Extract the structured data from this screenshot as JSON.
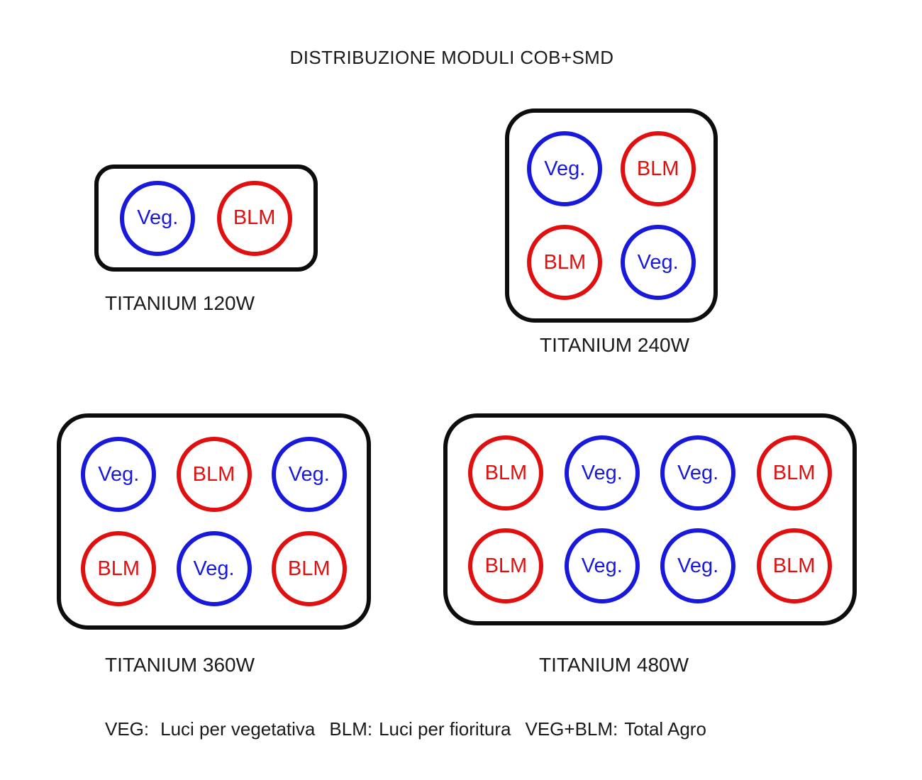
{
  "title": "DISTRIBUZIONE MODULI COB+SMD",
  "colors": {
    "veg": "#1919dc",
    "blm": "#e11010",
    "outline": "#0d0d0d",
    "text": "#1a1a1a",
    "background": "#ffffff"
  },
  "panels": [
    {
      "label": "TITANIUM 120W",
      "rows": 1,
      "cols": 2,
      "modules": [
        {
          "label": "Veg.",
          "type": "veg"
        },
        {
          "label": "BLM",
          "type": "blm"
        }
      ]
    },
    {
      "label": "TITANIUM 240W",
      "rows": 2,
      "cols": 2,
      "modules": [
        {
          "label": "Veg.",
          "type": "veg"
        },
        {
          "label": "BLM",
          "type": "blm"
        },
        {
          "label": "BLM",
          "type": "blm"
        },
        {
          "label": "Veg.",
          "type": "veg"
        }
      ]
    },
    {
      "label": "TITANIUM 360W",
      "rows": 2,
      "cols": 3,
      "modules": [
        {
          "label": "Veg.",
          "type": "veg"
        },
        {
          "label": "BLM",
          "type": "blm"
        },
        {
          "label": "Veg.",
          "type": "veg"
        },
        {
          "label": "BLM",
          "type": "blm"
        },
        {
          "label": "Veg.",
          "type": "veg"
        },
        {
          "label": "BLM",
          "type": "blm"
        }
      ]
    },
    {
      "label": "TITANIUM 480W",
      "rows": 2,
      "cols": 4,
      "modules": [
        {
          "label": "BLM",
          "type": "blm"
        },
        {
          "label": "Veg.",
          "type": "veg"
        },
        {
          "label": "Veg.",
          "type": "veg"
        },
        {
          "label": "BLM",
          "type": "blm"
        },
        {
          "label": "BLM",
          "type": "blm"
        },
        {
          "label": "Veg.",
          "type": "veg"
        },
        {
          "label": "Veg.",
          "type": "veg"
        },
        {
          "label": "BLM",
          "type": "blm"
        }
      ]
    }
  ],
  "legend": {
    "items": [
      {
        "term": "VEG:",
        "description": "Luci per vegetativa"
      },
      {
        "term": "BLM:",
        "description": "Luci per fioritura"
      },
      {
        "term": "VEG+BLM:",
        "description": "Total Agro"
      }
    ]
  }
}
